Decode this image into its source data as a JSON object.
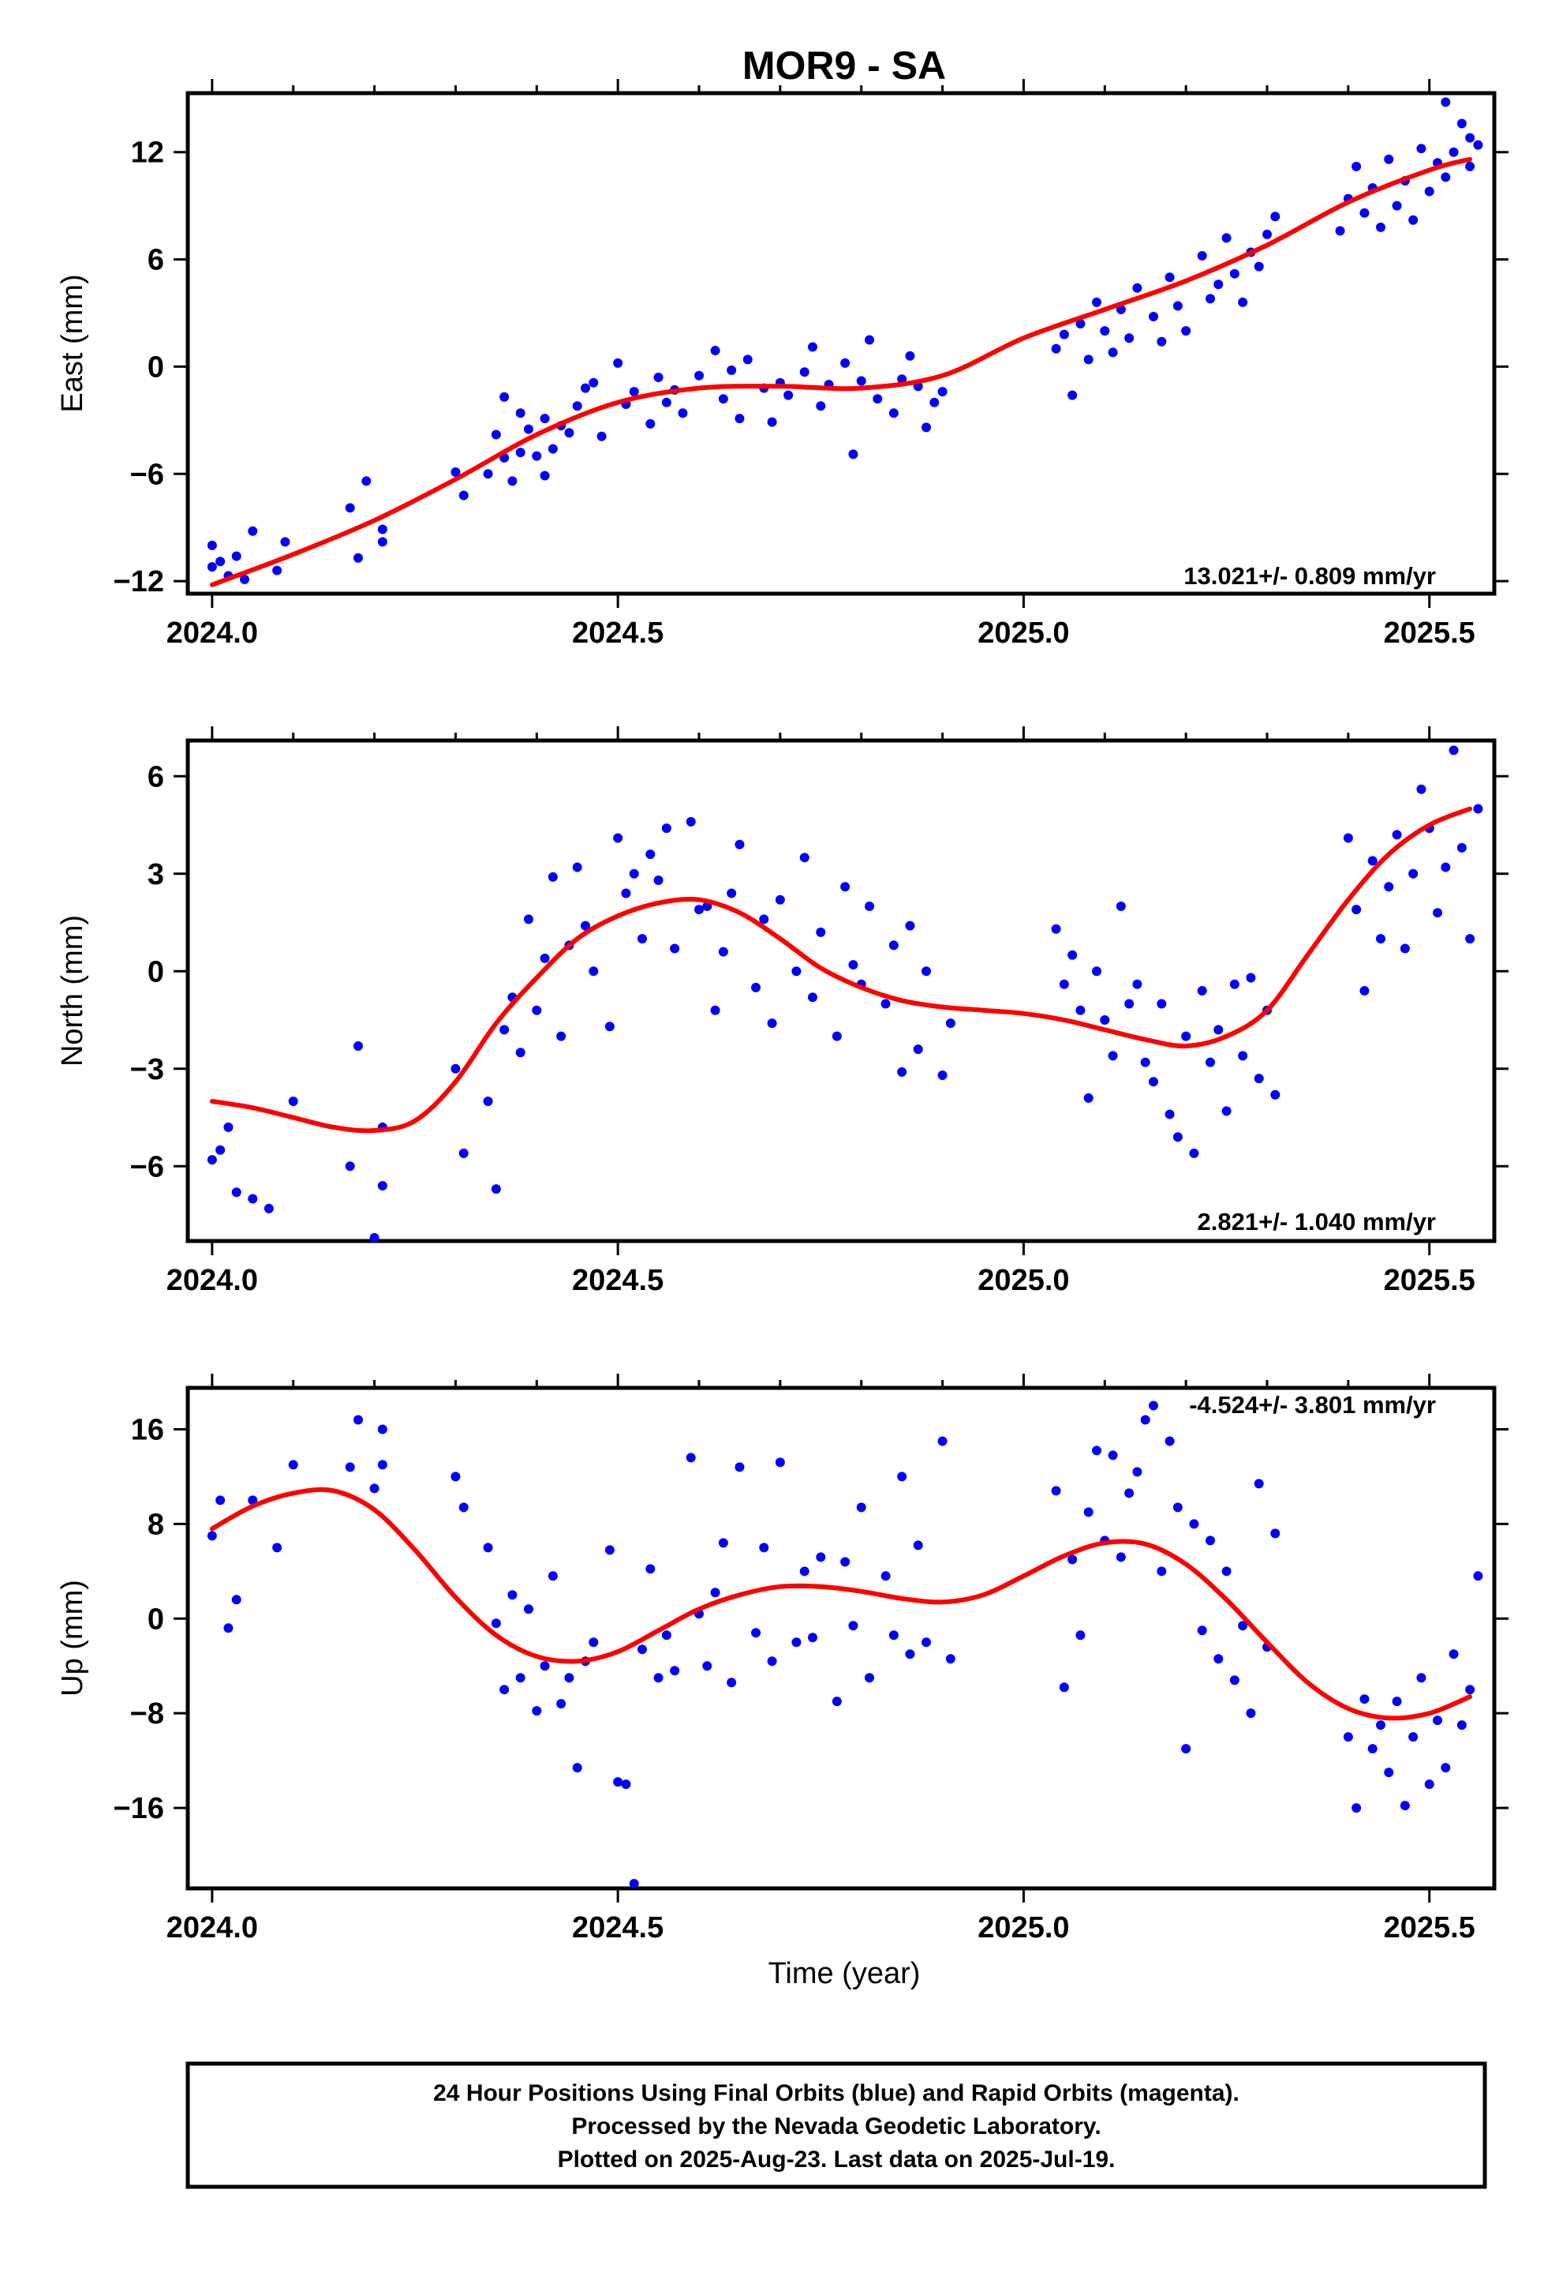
{
  "title": "MOR9 - SA",
  "xlabel": "Time (year)",
  "footer": [
    "24 Hour Positions Using Final Orbits (blue) and Rapid Orbits (magenta).",
    "Processed by the Nevada Geodetic Laboratory.",
    "Plotted on 2025-Aug-23. Last data on 2025-Jul-19."
  ],
  "colors": {
    "data": "#0000ff",
    "model": "#ff0000",
    "axis": "#000000"
  },
  "chart_data": [
    {
      "type": "scatter",
      "ylabel": "East (mm)",
      "rate_label": "13.021+/- 0.809 mm/yr",
      "xlim": [
        2023.97,
        2025.58
      ],
      "ylim": [
        -12.7,
        15.3
      ],
      "x_ticks": [
        "2024.0",
        "2024.5",
        "2025.0",
        "2025.5"
      ],
      "y_ticks": [
        "12",
        "6",
        "0",
        "−6",
        "−12"
      ],
      "series": [
        {
          "role": "data",
          "x": [
            2024.0,
            2024.0,
            2024.01,
            2024.02,
            2024.03,
            2024.04,
            2024.05,
            2024.08,
            2024.09,
            2024.17,
            2024.18,
            2024.19,
            2024.21,
            2024.21,
            2024.3,
            2024.31,
            2024.34,
            2024.35,
            2024.36,
            2024.36,
            2024.37,
            2024.38,
            2024.38,
            2024.39,
            2024.4,
            2024.41,
            2024.41,
            2024.42,
            2024.43,
            2024.44,
            2024.45,
            2024.46,
            2024.47,
            2024.48,
            2024.5,
            2024.51,
            2024.52,
            2024.54,
            2024.55,
            2024.56,
            2024.57,
            2024.58,
            2024.6,
            2024.62,
            2024.63,
            2024.64,
            2024.65,
            2024.66,
            2024.68,
            2024.69,
            2024.7,
            2024.71,
            2024.73,
            2024.74,
            2024.75,
            2024.76,
            2024.78,
            2024.79,
            2024.8,
            2024.81,
            2024.82,
            2024.84,
            2024.85,
            2024.86,
            2024.87,
            2024.88,
            2024.89,
            2024.9,
            2025.04,
            2025.05,
            2025.06,
            2025.07,
            2025.08,
            2025.09,
            2025.1,
            2025.11,
            2025.12,
            2025.13,
            2025.14,
            2025.16,
            2025.17,
            2025.18,
            2025.19,
            2025.2,
            2025.22,
            2025.23,
            2025.24,
            2025.25,
            2025.26,
            2025.27,
            2025.28,
            2025.29,
            2025.3,
            2025.31,
            2025.39,
            2025.4,
            2025.41,
            2025.42,
            2025.43,
            2025.44,
            2025.45,
            2025.46,
            2025.47,
            2025.48,
            2025.49,
            2025.5,
            2025.51,
            2025.52,
            2025.52,
            2025.53,
            2025.54,
            2025.55,
            2025.55,
            2025.56
          ],
          "y": [
            -10.0,
            -11.2,
            -10.9,
            -11.7,
            -10.6,
            -11.9,
            -9.2,
            -11.4,
            -9.8,
            -7.9,
            -10.7,
            -6.4,
            -9.8,
            -9.1,
            -5.9,
            -7.2,
            -6.0,
            -3.8,
            -5.1,
            -1.7,
            -6.4,
            -4.8,
            -2.6,
            -3.5,
            -5.0,
            -2.9,
            -6.1,
            -4.6,
            -3.3,
            -3.7,
            -2.2,
            -1.2,
            -0.9,
            -3.9,
            0.2,
            -2.1,
            -1.4,
            -3.2,
            -0.6,
            -2.0,
            -1.3,
            -2.6,
            -0.5,
            0.9,
            -1.8,
            -0.2,
            -2.9,
            0.4,
            -1.2,
            -3.1,
            -0.9,
            -1.6,
            -0.3,
            1.1,
            -2.2,
            -1.0,
            0.2,
            -4.9,
            -0.8,
            1.5,
            -1.8,
            -2.6,
            -0.7,
            0.6,
            -1.1,
            -3.4,
            -2.0,
            -1.4,
            1.0,
            1.8,
            -1.6,
            2.4,
            0.4,
            3.6,
            2.0,
            0.8,
            3.2,
            1.6,
            4.4,
            2.8,
            1.4,
            5.0,
            3.4,
            2.0,
            6.2,
            3.8,
            4.6,
            7.2,
            5.2,
            3.6,
            6.4,
            5.6,
            7.4,
            8.4,
            7.6,
            9.4,
            11.2,
            8.6,
            10.0,
            7.8,
            11.6,
            9.0,
            10.4,
            8.2,
            12.2,
            9.8,
            11.4,
            10.6,
            14.8,
            12.0,
            13.6,
            11.2,
            12.8,
            12.4
          ]
        },
        {
          "role": "model",
          "x": [
            2024.0,
            2024.1,
            2024.2,
            2024.3,
            2024.4,
            2024.5,
            2024.6,
            2024.7,
            2024.8,
            2024.9,
            2025.0,
            2025.1,
            2025.2,
            2025.3,
            2025.4,
            2025.5,
            2025.55
          ],
          "y": [
            -12.2,
            -10.5,
            -8.6,
            -6.3,
            -3.8,
            -2.0,
            -1.2,
            -1.1,
            -1.2,
            -0.5,
            1.6,
            3.2,
            4.8,
            6.8,
            9.2,
            11.0,
            11.6
          ]
        }
      ]
    },
    {
      "type": "scatter",
      "ylabel": "North (mm)",
      "rate_label": "2.821+/- 1.040 mm/yr",
      "xlim": [
        2023.97,
        2025.58
      ],
      "ylim": [
        -8.3,
        7.1
      ],
      "x_ticks": [
        "2024.0",
        "2024.5",
        "2025.0",
        "2025.5"
      ],
      "y_ticks": [
        "6",
        "3",
        "0",
        "−3",
        "−6"
      ],
      "series": [
        {
          "role": "data",
          "x": [
            2024.0,
            2024.01,
            2024.02,
            2024.03,
            2024.05,
            2024.07,
            2024.1,
            2024.17,
            2024.18,
            2024.2,
            2024.21,
            2024.21,
            2024.3,
            2024.31,
            2024.34,
            2024.35,
            2024.36,
            2024.37,
            2024.38,
            2024.39,
            2024.4,
            2024.41,
            2024.42,
            2024.43,
            2024.44,
            2024.45,
            2024.46,
            2024.47,
            2024.49,
            2024.5,
            2024.51,
            2024.52,
            2024.53,
            2024.54,
            2024.55,
            2024.56,
            2024.57,
            2024.59,
            2024.6,
            2024.61,
            2024.62,
            2024.63,
            2024.64,
            2024.65,
            2024.67,
            2024.68,
            2024.69,
            2024.7,
            2024.72,
            2024.73,
            2024.74,
            2024.75,
            2024.77,
            2024.78,
            2024.79,
            2024.8,
            2024.81,
            2024.83,
            2024.84,
            2024.85,
            2024.86,
            2024.87,
            2024.88,
            2024.9,
            2024.91,
            2025.04,
            2025.05,
            2025.06,
            2025.07,
            2025.08,
            2025.09,
            2025.1,
            2025.11,
            2025.12,
            2025.13,
            2025.14,
            2025.15,
            2025.16,
            2025.17,
            2025.18,
            2025.19,
            2025.2,
            2025.21,
            2025.22,
            2025.23,
            2025.24,
            2025.25,
            2025.26,
            2025.27,
            2025.28,
            2025.29,
            2025.3,
            2025.31,
            2025.4,
            2025.41,
            2025.42,
            2025.43,
            2025.44,
            2025.45,
            2025.46,
            2025.47,
            2025.48,
            2025.49,
            2025.5,
            2025.51,
            2025.52,
            2025.53,
            2025.54,
            2025.55,
            2025.56
          ],
          "y": [
            -5.8,
            -5.5,
            -4.8,
            -6.8,
            -7.0,
            -7.3,
            -4.0,
            -6.0,
            -2.3,
            -8.2,
            -4.8,
            -6.6,
            -3.0,
            -5.6,
            -4.0,
            -6.7,
            -1.8,
            -0.8,
            -2.5,
            1.6,
            -1.2,
            0.4,
            2.9,
            -2.0,
            0.8,
            3.2,
            1.4,
            0.0,
            -1.7,
            4.1,
            2.4,
            3.0,
            1.0,
            3.6,
            2.8,
            4.4,
            0.7,
            4.6,
            1.9,
            2.0,
            -1.2,
            0.6,
            2.4,
            3.9,
            -0.5,
            1.6,
            -1.6,
            2.2,
            0.0,
            3.5,
            -0.8,
            1.2,
            -2.0,
            2.6,
            0.2,
            -0.4,
            2.0,
            -1.0,
            0.8,
            -3.1,
            1.4,
            -2.4,
            0.0,
            -3.2,
            -1.6,
            1.3,
            -0.4,
            0.5,
            -1.2,
            -3.9,
            0.0,
            -1.5,
            -2.6,
            2.0,
            -1.0,
            -0.4,
            -2.8,
            -3.4,
            -1.0,
            -4.4,
            -5.1,
            -2.0,
            -5.6,
            -0.6,
            -2.8,
            -1.8,
            -4.3,
            -0.4,
            -2.6,
            -0.2,
            -3.3,
            -1.2,
            -3.8,
            4.1,
            1.9,
            -0.6,
            3.4,
            1.0,
            2.6,
            4.2,
            0.7,
            3.0,
            5.6,
            4.4,
            1.8,
            3.2,
            6.8,
            3.8,
            1.0,
            5.0
          ]
        },
        {
          "role": "model",
          "x": [
            2024.0,
            2024.05,
            2024.1,
            2024.15,
            2024.2,
            2024.25,
            2024.3,
            2024.35,
            2024.4,
            2024.45,
            2024.5,
            2024.55,
            2024.6,
            2024.65,
            2024.7,
            2024.75,
            2024.8,
            2024.85,
            2024.9,
            2024.95,
            2025.0,
            2025.05,
            2025.1,
            2025.15,
            2025.2,
            2025.25,
            2025.3,
            2025.35,
            2025.4,
            2025.45,
            2025.5,
            2025.55
          ],
          "y": [
            -4.0,
            -4.2,
            -4.5,
            -4.8,
            -4.9,
            -4.6,
            -3.4,
            -1.6,
            -0.2,
            1.0,
            1.7,
            2.1,
            2.2,
            1.8,
            1.0,
            0.1,
            -0.5,
            -0.9,
            -1.1,
            -1.2,
            -1.3,
            -1.5,
            -1.8,
            -2.1,
            -2.3,
            -2.0,
            -1.2,
            0.5,
            2.2,
            3.6,
            4.5,
            5.0
          ]
        }
      ]
    },
    {
      "type": "scatter",
      "ylabel": "Up (mm)",
      "rate_label": "-4.524+/- 3.801 mm/yr",
      "xlim": [
        2023.97,
        2025.58
      ],
      "ylim": [
        -22.8,
        19.5
      ],
      "x_ticks": [
        "2024.0",
        "2024.5",
        "2025.0",
        "2025.5"
      ],
      "y_ticks": [
        "16",
        "8",
        "0",
        "−8",
        "−16"
      ],
      "series": [
        {
          "role": "data",
          "x": [
            2024.0,
            2024.01,
            2024.02,
            2024.03,
            2024.05,
            2024.08,
            2024.1,
            2024.17,
            2024.18,
            2024.2,
            2024.21,
            2024.21,
            2024.3,
            2024.31,
            2024.34,
            2024.35,
            2024.36,
            2024.37,
            2024.38,
            2024.39,
            2024.4,
            2024.41,
            2024.42,
            2024.43,
            2024.44,
            2024.45,
            2024.46,
            2024.47,
            2024.49,
            2024.5,
            2024.51,
            2024.52,
            2024.53,
            2024.54,
            2024.55,
            2024.56,
            2024.57,
            2024.59,
            2024.6,
            2024.61,
            2024.62,
            2024.63,
            2024.64,
            2024.65,
            2024.67,
            2024.68,
            2024.69,
            2024.7,
            2024.72,
            2024.73,
            2024.74,
            2024.75,
            2024.77,
            2024.78,
            2024.79,
            2024.8,
            2024.81,
            2024.83,
            2024.84,
            2024.85,
            2024.86,
            2024.87,
            2024.88,
            2024.9,
            2024.91,
            2025.04,
            2025.05,
            2025.06,
            2025.07,
            2025.08,
            2025.09,
            2025.1,
            2025.11,
            2025.12,
            2025.13,
            2025.14,
            2025.15,
            2025.16,
            2025.17,
            2025.18,
            2025.19,
            2025.2,
            2025.21,
            2025.22,
            2025.23,
            2025.24,
            2025.25,
            2025.26,
            2025.27,
            2025.28,
            2025.29,
            2025.3,
            2025.31,
            2025.4,
            2025.41,
            2025.42,
            2025.43,
            2025.44,
            2025.45,
            2025.46,
            2025.47,
            2025.48,
            2025.49,
            2025.5,
            2025.51,
            2025.52,
            2025.53,
            2025.54,
            2025.55,
            2025.56
          ],
          "y": [
            7.0,
            10.0,
            -0.8,
            1.6,
            10.0,
            6.0,
            13.0,
            12.8,
            16.8,
            11.0,
            13.0,
            16.0,
            12.0,
            9.4,
            6.0,
            -0.4,
            -6.0,
            2.0,
            -5.0,
            0.8,
            -7.8,
            -4.0,
            3.6,
            -7.2,
            -5.0,
            -12.6,
            -3.6,
            -2.0,
            5.8,
            -13.8,
            -14.0,
            -22.4,
            -2.6,
            4.2,
            -5.0,
            -1.4,
            -4.4,
            13.6,
            0.4,
            -4.0,
            2.2,
            6.4,
            -5.4,
            12.8,
            -1.2,
            6.0,
            -3.6,
            13.2,
            -2.0,
            4.0,
            -1.6,
            5.2,
            -7.0,
            4.8,
            -0.6,
            9.4,
            -5.0,
            3.6,
            -1.4,
            12.0,
            -3.0,
            6.2,
            -2.0,
            15.0,
            -3.4,
            10.8,
            -5.8,
            5.0,
            -1.4,
            9.0,
            14.2,
            6.6,
            13.8,
            5.2,
            10.6,
            12.4,
            16.8,
            18.0,
            4.0,
            15.0,
            9.4,
            -11.0,
            8.0,
            -1.0,
            6.6,
            -3.4,
            4.0,
            -5.2,
            -0.6,
            -8.0,
            11.4,
            -2.4,
            7.2,
            -10.0,
            -16.0,
            -6.8,
            -11.0,
            -9.0,
            -13.0,
            -7.0,
            -15.8,
            -10.0,
            -5.0,
            -14.0,
            -8.6,
            -12.6,
            -3.0,
            -9.0,
            -6.0,
            3.6
          ]
        },
        {
          "role": "model",
          "x": [
            2024.0,
            2024.05,
            2024.1,
            2024.15,
            2024.2,
            2024.25,
            2024.3,
            2024.35,
            2024.4,
            2024.45,
            2024.5,
            2024.55,
            2024.6,
            2024.65,
            2024.7,
            2024.75,
            2024.8,
            2024.85,
            2024.9,
            2024.95,
            2025.0,
            2025.05,
            2025.1,
            2025.15,
            2025.2,
            2025.25,
            2025.3,
            2025.35,
            2025.4,
            2025.45,
            2025.5,
            2025.55
          ],
          "y": [
            7.6,
            9.5,
            10.6,
            10.8,
            9.2,
            5.8,
            1.8,
            -1.4,
            -3.2,
            -3.6,
            -2.8,
            -1.0,
            0.8,
            2.0,
            2.7,
            2.7,
            2.3,
            1.7,
            1.4,
            2.0,
            3.6,
            5.3,
            6.4,
            6.3,
            4.6,
            1.6,
            -2.0,
            -5.4,
            -7.6,
            -8.4,
            -8.0,
            -6.6
          ]
        }
      ]
    }
  ]
}
